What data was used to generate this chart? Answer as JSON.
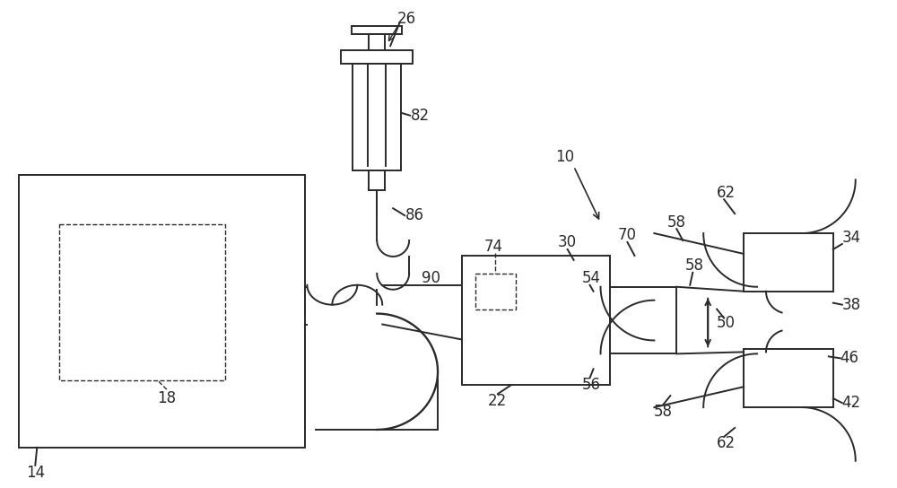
{
  "bg_color": "#ffffff",
  "line_color": "#2a2a2a",
  "lw_main": 1.4,
  "fontsize": 12,
  "fig_w": 10.0,
  "fig_h": 5.44
}
